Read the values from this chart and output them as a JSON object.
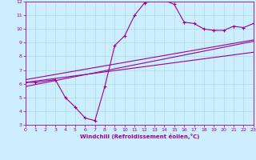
{
  "xlabel": "Windchill (Refroidissement éolien,°C)",
  "bg_color": "#cceeff",
  "line_color": "#990099",
  "grid_color": "#aadddd",
  "xlim": [
    0,
    23
  ],
  "ylim": [
    3,
    12
  ],
  "xticks": [
    0,
    1,
    2,
    3,
    4,
    5,
    6,
    7,
    8,
    9,
    10,
    11,
    12,
    13,
    14,
    15,
    16,
    17,
    18,
    19,
    20,
    21,
    22,
    23
  ],
  "yticks": [
    3,
    4,
    5,
    6,
    7,
    8,
    9,
    10,
    11,
    12
  ],
  "curve1_x": [
    0,
    1,
    3,
    4,
    5,
    6,
    7,
    8,
    9,
    10,
    11,
    12,
    13,
    14,
    15,
    16,
    17,
    18,
    19,
    20,
    21,
    22,
    23
  ],
  "curve1_y": [
    6.1,
    6.1,
    6.3,
    5.0,
    4.3,
    3.5,
    3.3,
    5.8,
    8.8,
    9.5,
    11.0,
    11.9,
    12.1,
    12.1,
    11.8,
    10.5,
    10.4,
    10.0,
    9.9,
    9.9,
    10.2,
    10.1,
    10.4
  ],
  "line2_x": [
    0,
    23
  ],
  "line2_y": [
    6.3,
    9.2
  ],
  "line3_x": [
    0,
    23
  ],
  "line3_y": [
    6.1,
    8.3
  ],
  "line4_x": [
    0,
    23
  ],
  "line4_y": [
    5.8,
    9.1
  ]
}
